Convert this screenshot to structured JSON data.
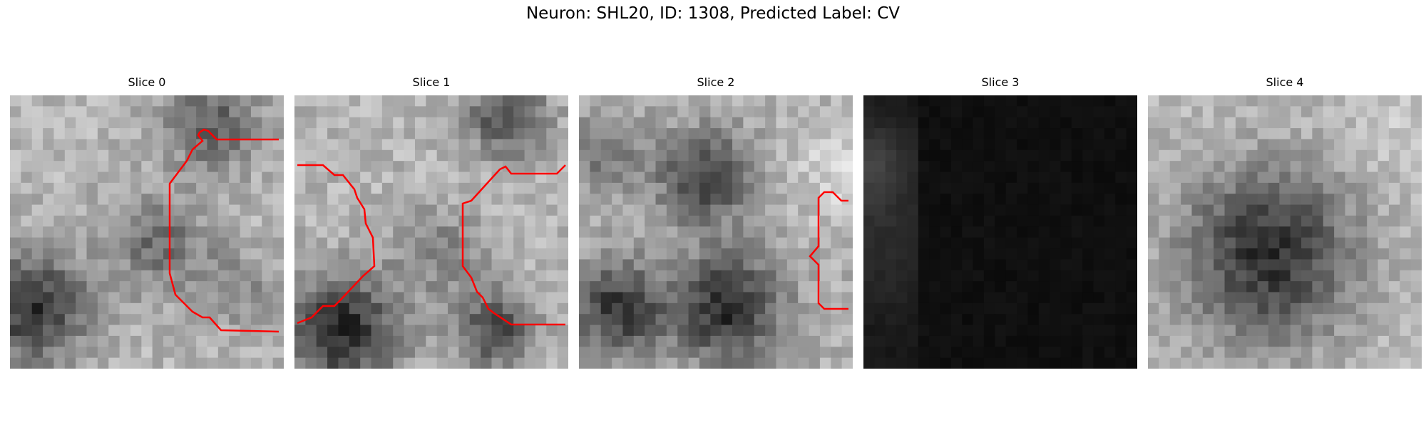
{
  "title": "Neuron: SHL20, ID: 1308, Predicted Label: CV",
  "panels": [
    {
      "label": "Slice 0"
    },
    {
      "label": "Slice 1"
    },
    {
      "label": "Slice 2"
    },
    {
      "label": "Slice 3"
    },
    {
      "label": "Slice 4"
    }
  ],
  "colors": {
    "contour": "#ff0000",
    "background": "#ffffff"
  }
}
